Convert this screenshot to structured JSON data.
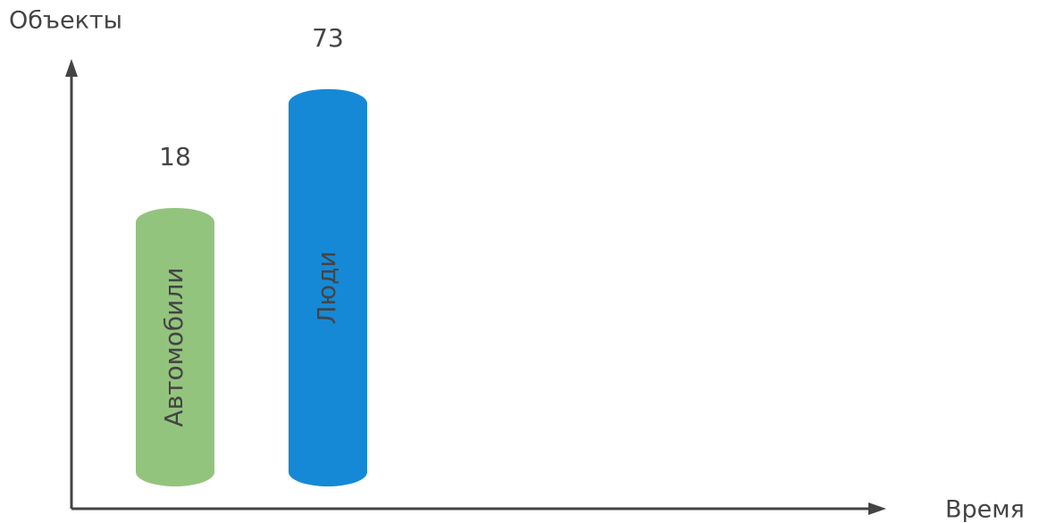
{
  "chart_data": {
    "type": "bar",
    "x_label": "Время",
    "y_label": "Объекты",
    "categories": [
      "Автомобили",
      "Люди"
    ],
    "values": [
      18,
      73
    ],
    "colors": [
      "#93c47d",
      "#1689d6"
    ]
  }
}
